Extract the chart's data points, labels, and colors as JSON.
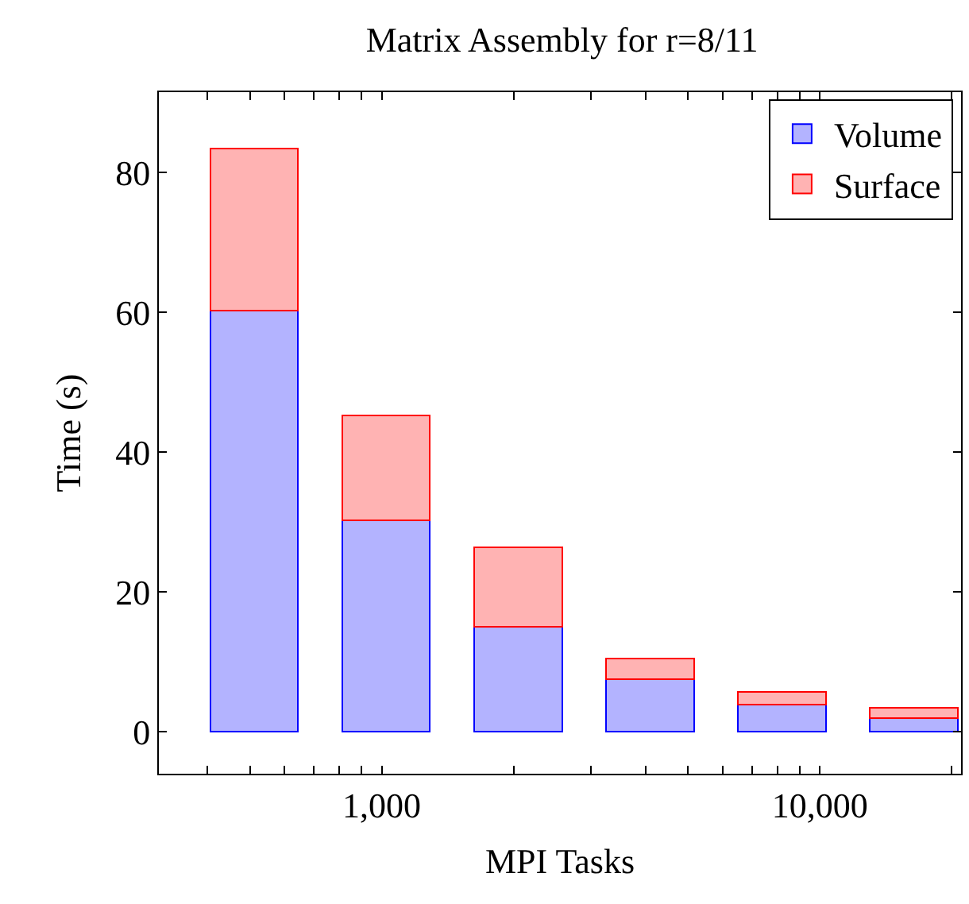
{
  "chart_data": {
    "type": "bar",
    "title": "Matrix Assembly for r=8/11",
    "xlabel": "MPI Tasks",
    "ylabel": "Time (s)",
    "x": [
      512,
      1024,
      2048,
      4096,
      8192,
      16384
    ],
    "stacked": true,
    "log": "x",
    "legend": "top right",
    "xlim": [
      310,
      21000
    ],
    "xticks": [
      {
        "value": 400,
        "label": null
      },
      {
        "value": 500,
        "label": null
      },
      {
        "value": 600,
        "label": null
      },
      {
        "value": 700,
        "label": null
      },
      {
        "value": 800,
        "label": null
      },
      {
        "value": 900,
        "label": null
      },
      {
        "value": 1000,
        "label": "1,000"
      },
      {
        "value": 2000,
        "label": null
      },
      {
        "value": 3000,
        "label": null
      },
      {
        "value": 4000,
        "label": null
      },
      {
        "value": 5000,
        "label": null
      },
      {
        "value": 6000,
        "label": null
      },
      {
        "value": 7000,
        "label": null
      },
      {
        "value": 8000,
        "label": null
      },
      {
        "value": 9000,
        "label": null
      },
      {
        "value": 10000,
        "label": "10,000"
      },
      {
        "value": 20000,
        "label": null
      }
    ],
    "ylim": [
      -6,
      91.5
    ],
    "yticks": [
      0,
      20,
      40,
      60,
      80
    ],
    "series": [
      {
        "name": "Volume",
        "color": "#b3b3ff",
        "values": [
          60.2,
          30.2,
          15.0,
          7.5,
          3.9,
          2.0
        ]
      },
      {
        "name": "Surface",
        "color": "#ffb3b3",
        "values": [
          23.2,
          15.0,
          11.4,
          3.0,
          1.8,
          1.4
        ]
      }
    ]
  }
}
